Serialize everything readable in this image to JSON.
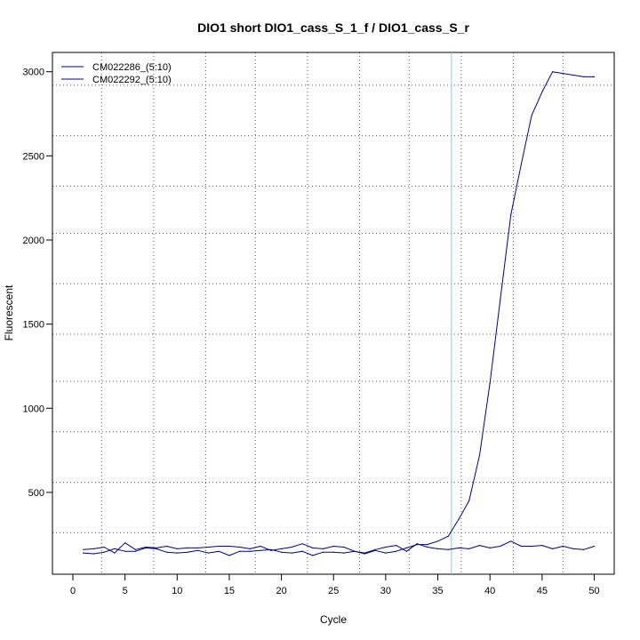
{
  "chart_data": {
    "type": "line",
    "title": "DIO1 short DIO1_cass_S_1_f / DIO1_cass_S_r",
    "xlabel": "Cycle",
    "ylabel": "Fluorescent",
    "xlim": [
      -2,
      52
    ],
    "ylim": [
      0,
      3150
    ],
    "x_ticks": [
      0,
      5,
      10,
      15,
      20,
      25,
      30,
      35,
      40,
      45,
      50
    ],
    "y_ticks": [
      500,
      1000,
      1500,
      2000,
      2500,
      3000
    ],
    "grid": "dotted",
    "x_grid": [
      2.75,
      7.75,
      12.75,
      17.5,
      22.5,
      27.5,
      32.25,
      37.25,
      42.25,
      47
    ],
    "y_grid": [
      260,
      560,
      860,
      1160,
      1440,
      1740,
      2040,
      2320,
      2620,
      2920
    ],
    "threshold_x": 36.3,
    "threshold_color": "#5ee0e8",
    "legend_position": "top-left",
    "series": [
      {
        "name": "CM022286_(5:10)",
        "color": "#00008b",
        "x": [
          1,
          2,
          3,
          4,
          5,
          6,
          7,
          8,
          9,
          10,
          11,
          12,
          13,
          14,
          15,
          16,
          17,
          18,
          19,
          20,
          21,
          22,
          23,
          24,
          25,
          26,
          27,
          28,
          29,
          30,
          31,
          32,
          33,
          34,
          35,
          36,
          37,
          38,
          39,
          40,
          41,
          42,
          43,
          44,
          45,
          46,
          47,
          48,
          49,
          50
        ],
        "values": [
          140,
          135,
          145,
          165,
          150,
          150,
          170,
          165,
          145,
          140,
          145,
          155,
          140,
          150,
          125,
          150,
          150,
          155,
          160,
          145,
          140,
          150,
          125,
          145,
          145,
          140,
          150,
          135,
          155,
          140,
          150,
          170,
          190,
          190,
          210,
          240,
          340,
          450,
          720,
          1150,
          1650,
          2150,
          2450,
          2740,
          2880,
          3000,
          2990,
          2980,
          2970,
          2970
        ]
      },
      {
        "name": "CM022292_(5:10)",
        "color": "#00008b",
        "x": [
          1,
          2,
          3,
          4,
          5,
          6,
          7,
          8,
          9,
          10,
          11,
          12,
          13,
          14,
          15,
          16,
          17,
          18,
          19,
          20,
          21,
          22,
          23,
          24,
          25,
          26,
          27,
          28,
          29,
          30,
          31,
          32,
          33,
          34,
          35,
          36,
          37,
          38,
          39,
          40,
          41,
          42,
          43,
          44,
          45,
          46,
          47,
          48,
          49,
          50
        ],
        "values": [
          160,
          165,
          175,
          140,
          200,
          160,
          175,
          170,
          180,
          165,
          170,
          170,
          175,
          180,
          180,
          175,
          165,
          180,
          155,
          165,
          175,
          195,
          170,
          165,
          180,
          175,
          150,
          140,
          160,
          175,
          185,
          150,
          195,
          175,
          165,
          160,
          170,
          165,
          185,
          170,
          180,
          210,
          180,
          180,
          185,
          165,
          180,
          165,
          160,
          180
        ]
      }
    ]
  }
}
